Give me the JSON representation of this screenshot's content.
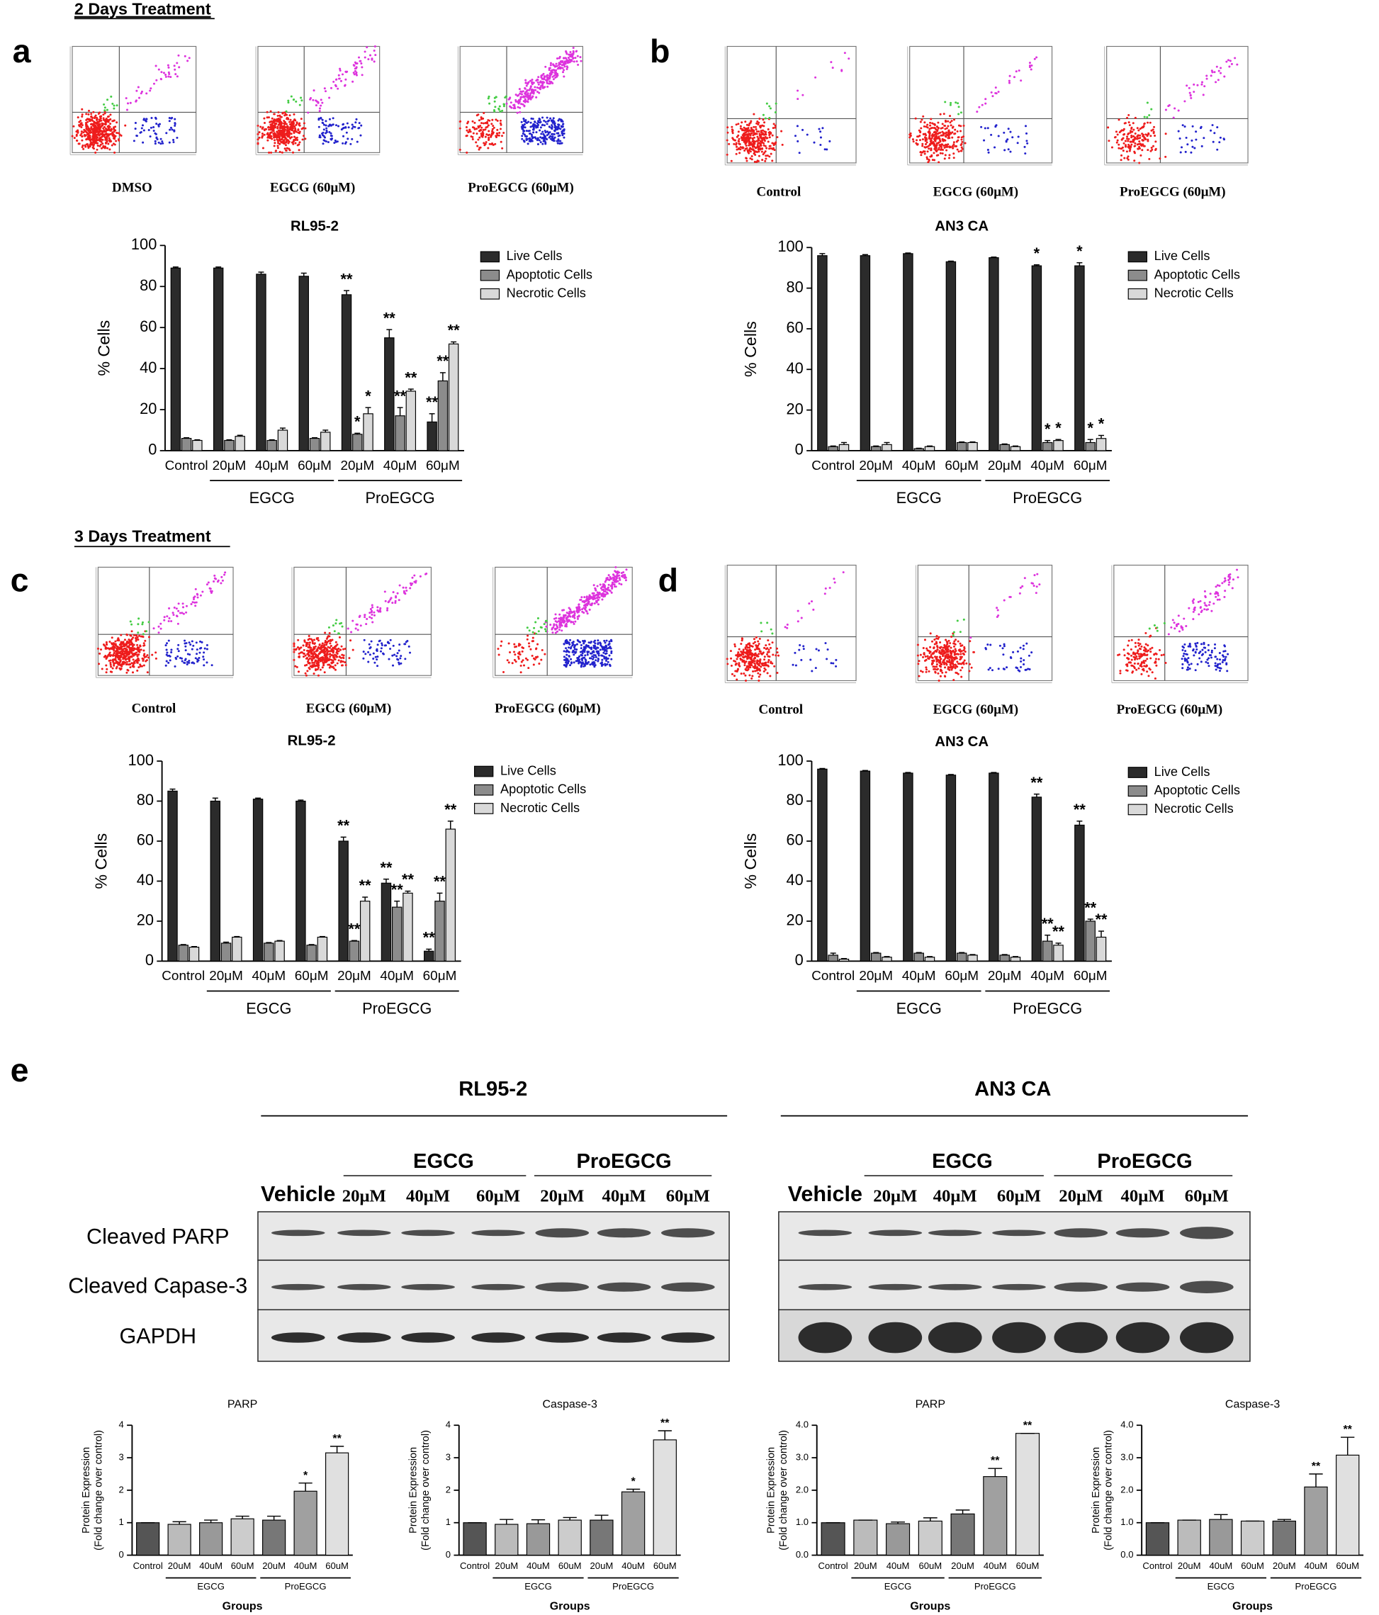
{
  "labels": {
    "day2": "2 Days Treatment",
    "day3": "3 Days Treatment",
    "panels": [
      "a",
      "b",
      "c",
      "d",
      "e"
    ]
  },
  "flow": [
    {
      "captions": [
        "DMSO",
        "EGCG (60μM)",
        "ProEGCG (60μM)"
      ]
    },
    {
      "captions": [
        "Control",
        "EGCG (60μM)",
        "ProEGCG (60μM)"
      ]
    },
    {
      "captions": [
        "Control",
        "EGCG (60μM)",
        "ProEGCG (60μM)"
      ]
    },
    {
      "captions": [
        "Control",
        "EGCG (60μM)",
        "ProEGCG (60μM)"
      ]
    }
  ],
  "blots": [
    {
      "title": "RL95-2",
      "groups": [
        "EGCG",
        "ProEGCG"
      ],
      "lanes": [
        "Vehicle",
        "20μM",
        "40μM",
        "60μM",
        "20μM",
        "40μM",
        "60μM"
      ],
      "rows": [
        "Cleaved PARP",
        "Cleaved Capase-3",
        "GAPDH"
      ]
    },
    {
      "title": "AN3 CA",
      "groups": [
        "EGCG",
        "ProEGCG"
      ],
      "lanes": [
        "Vehicle",
        "20μM",
        "40μM",
        "60μM",
        "20μM",
        "40μM",
        "60μM"
      ]
    }
  ],
  "chart_data": [
    {
      "type": "bar",
      "title": "RL95-2",
      "ylabel": "% Cells",
      "ylim": [
        0,
        100
      ],
      "yticks": [
        0,
        20,
        40,
        60,
        80,
        100
      ],
      "legend": "right",
      "categories": [
        "Control",
        "20μM",
        "40μM",
        "60μM",
        "20μM",
        "40μM",
        "60μM"
      ],
      "groups": [
        "EGCG",
        "ProEGCG"
      ],
      "series": [
        {
          "name": "Live Cells",
          "color": "#2b2b2b",
          "values": [
            89,
            89,
            86,
            85,
            76,
            55,
            14
          ],
          "errors": [
            0.5,
            0.5,
            1,
            1.5,
            2,
            4,
            4
          ],
          "significance": [
            null,
            null,
            null,
            null,
            "**",
            "**",
            "**"
          ]
        },
        {
          "name": "Apoptotic Cells",
          "color": "#8c8c8c",
          "values": [
            6,
            5,
            5,
            6,
            8,
            17,
            34
          ],
          "errors": [
            0.3,
            0.3,
            0.3,
            0.3,
            0.5,
            4,
            4
          ],
          "significance": [
            null,
            null,
            null,
            null,
            "*",
            "**",
            "**"
          ]
        },
        {
          "name": "Necrotic Cells",
          "color": "#d9d9d9",
          "values": [
            5,
            7,
            10,
            9,
            18,
            29,
            52
          ],
          "errors": [
            0.3,
            0.5,
            1,
            1,
            3,
            1,
            1
          ],
          "significance": [
            null,
            null,
            null,
            null,
            "*",
            "**",
            "**"
          ]
        }
      ]
    },
    {
      "type": "bar",
      "title": "AN3 CA",
      "ylabel": "% Cells",
      "ylim": [
        0,
        100
      ],
      "yticks": [
        0,
        20,
        40,
        60,
        80,
        100
      ],
      "legend": "right",
      "categories": [
        "Control",
        "20μM",
        "40μM",
        "60μM",
        "20μM",
        "40μM",
        "60μM"
      ],
      "groups": [
        "EGCG",
        "ProEGCG"
      ],
      "series": [
        {
          "name": "Live Cells",
          "color": "#2b2b2b",
          "values": [
            96,
            96,
            97,
            93,
            95,
            91,
            91
          ],
          "errors": [
            1,
            0.5,
            0.3,
            0.3,
            0.3,
            0.5,
            1.5
          ],
          "significance": [
            null,
            null,
            null,
            null,
            null,
            "*",
            "*"
          ]
        },
        {
          "name": "Apoptotic Cells",
          "color": "#8c8c8c",
          "values": [
            2,
            2,
            1,
            4,
            3,
            4,
            4
          ],
          "errors": [
            0.3,
            0.3,
            0.2,
            0.3,
            0.3,
            1,
            1.5
          ],
          "significance": [
            null,
            null,
            null,
            null,
            null,
            "*",
            "*"
          ]
        },
        {
          "name": "Necrotic Cells",
          "color": "#d9d9d9",
          "values": [
            3,
            3,
            2,
            4,
            2,
            5,
            6
          ],
          "errors": [
            1,
            1,
            0.3,
            0.3,
            0.3,
            0.5,
            1.5
          ],
          "significance": [
            null,
            null,
            null,
            null,
            null,
            "*",
            "*"
          ]
        }
      ]
    },
    {
      "type": "bar",
      "title": "RL95-2",
      "ylabel": "% Cells",
      "ylim": [
        0,
        100
      ],
      "yticks": [
        0,
        20,
        40,
        60,
        80,
        100
      ],
      "legend": "right",
      "categories": [
        "Control",
        "20μM",
        "40μM",
        "60μM",
        "20μM",
        "40μM",
        "60μM"
      ],
      "groups": [
        "EGCG",
        "ProEGCG"
      ],
      "series": [
        {
          "name": "Live Cells",
          "color": "#2b2b2b",
          "values": [
            85,
            80,
            81,
            80,
            60,
            39,
            5
          ],
          "errors": [
            1,
            1.5,
            0.5,
            0.5,
            2,
            2,
            1
          ],
          "significance": [
            null,
            null,
            null,
            null,
            "**",
            "**",
            "**"
          ]
        },
        {
          "name": "Apoptotic Cells",
          "color": "#8c8c8c",
          "values": [
            8,
            9,
            9,
            8,
            10,
            27,
            30
          ],
          "errors": [
            0.3,
            0.5,
            0.3,
            0.3,
            0.3,
            3,
            4
          ],
          "significance": [
            null,
            null,
            null,
            null,
            "**",
            "**",
            "**"
          ]
        },
        {
          "name": "Necrotic Cells",
          "color": "#d9d9d9",
          "values": [
            7,
            12,
            10,
            12,
            30,
            34,
            66
          ],
          "errors": [
            0.3,
            0.3,
            0.3,
            0.3,
            2,
            1,
            4
          ],
          "significance": [
            null,
            null,
            null,
            null,
            "**",
            "**",
            "**"
          ]
        }
      ]
    },
    {
      "type": "bar",
      "title": "AN3 CA",
      "ylabel": "% Cells",
      "ylim": [
        0,
        100
      ],
      "yticks": [
        0,
        20,
        40,
        60,
        80,
        100
      ],
      "legend": "right",
      "categories": [
        "Control",
        "20μM",
        "40μM",
        "60μM",
        "20μM",
        "40μM",
        "60μM"
      ],
      "groups": [
        "EGCG",
        "ProEGCG"
      ],
      "series": [
        {
          "name": "Live Cells",
          "color": "#2b2b2b",
          "values": [
            96,
            95,
            94,
            93,
            94,
            82,
            68
          ],
          "errors": [
            0.3,
            0.3,
            0.3,
            0.3,
            0.3,
            1.5,
            2
          ],
          "significance": [
            null,
            null,
            null,
            null,
            null,
            "**",
            "**"
          ]
        },
        {
          "name": "Apoptotic Cells",
          "color": "#8c8c8c",
          "values": [
            3,
            4,
            4,
            4,
            3,
            10,
            20
          ],
          "errors": [
            1,
            0.3,
            0.3,
            0.3,
            0.3,
            3,
            1
          ],
          "significance": [
            null,
            null,
            null,
            null,
            null,
            "**",
            "**"
          ]
        },
        {
          "name": "Necrotic Cells",
          "color": "#d9d9d9",
          "values": [
            1,
            2,
            2,
            3,
            2,
            8,
            12
          ],
          "errors": [
            0.3,
            0.3,
            0.3,
            0.3,
            0.3,
            1,
            3
          ],
          "significance": [
            null,
            null,
            null,
            null,
            null,
            "**",
            "**"
          ]
        }
      ]
    },
    {
      "type": "bar",
      "title": "PARP",
      "ylabel": [
        "Protein Expression",
        "(Fold change over control)"
      ],
      "xlabel": "Groups",
      "ylim": [
        0,
        4
      ],
      "yticks": [
        0,
        1,
        2,
        3,
        4
      ],
      "categories": [
        "Control",
        "20uM",
        "40uM",
        "60uM",
        "20uM",
        "40uM",
        "60uM"
      ],
      "groups": [
        "EGCG",
        "ProEGCG"
      ],
      "values": [
        1,
        0.95,
        1,
        1.12,
        1.08,
        1.97,
        3.15
      ],
      "errors": [
        0,
        0.08,
        0.08,
        0.08,
        0.12,
        0.25,
        0.2
      ],
      "significance": [
        null,
        null,
        null,
        null,
        null,
        "*",
        "**"
      ],
      "colors": [
        "#555555",
        "#bbbbbb",
        "#999999",
        "#cccccc",
        "#777777",
        "#a0a0a0",
        "#e0e0e0"
      ]
    },
    {
      "type": "bar",
      "title": "Caspase-3",
      "ylabel": [
        "Protein Expression",
        "(Fold change over control)"
      ],
      "xlabel": "Groups",
      "ylim": [
        0,
        4
      ],
      "yticks": [
        0,
        1,
        2,
        3,
        4
      ],
      "categories": [
        "Control",
        "20uM",
        "40uM",
        "60uM",
        "20uM",
        "40uM",
        "60uM"
      ],
      "groups": [
        "EGCG",
        "ProEGCG"
      ],
      "values": [
        1,
        0.95,
        0.97,
        1.08,
        1.08,
        1.95,
        3.55
      ],
      "errors": [
        0,
        0.15,
        0.12,
        0.08,
        0.15,
        0.08,
        0.28
      ],
      "significance": [
        null,
        null,
        null,
        null,
        null,
        "*",
        "**"
      ],
      "colors": [
        "#555555",
        "#bbbbbb",
        "#999999",
        "#cccccc",
        "#777777",
        "#a0a0a0",
        "#e0e0e0"
      ]
    },
    {
      "type": "bar",
      "title": "PARP",
      "ylabel": [
        "Protein Expression",
        "(Fold change over control)"
      ],
      "xlabel": "Groups",
      "ylim": [
        0,
        4
      ],
      "yticks": [
        {
          "value": 0,
          "label": "0.0"
        },
        {
          "value": 1,
          "label": "1.0"
        },
        {
          "value": 2,
          "label": "2.0"
        },
        {
          "value": 3,
          "label": "3.0"
        },
        {
          "value": 4,
          "label": "4.0"
        }
      ],
      "categories": [
        "Control",
        "20uM",
        "40uM",
        "60uM",
        "20uM",
        "40uM",
        "60uM"
      ],
      "groups": [
        "EGCG",
        "ProEGCG"
      ],
      "values": [
        1,
        1.08,
        0.97,
        1.05,
        1.27,
        2.42,
        3.75
      ],
      "errors": [
        0,
        0,
        0.05,
        0.1,
        0.12,
        0.25,
        0
      ],
      "significance": [
        null,
        null,
        null,
        null,
        null,
        "**",
        "**"
      ],
      "colors": [
        "#555555",
        "#bbbbbb",
        "#999999",
        "#cccccc",
        "#777777",
        "#a0a0a0",
        "#e0e0e0"
      ]
    },
    {
      "type": "bar",
      "title": "Caspase-3",
      "ylabel": [
        "Protein Expression",
        "(Fold change over control)"
      ],
      "xlabel": "Groups",
      "ylim": [
        0,
        4
      ],
      "yticks": [
        {
          "value": 0,
          "label": "0.0"
        },
        {
          "value": 1,
          "label": "1.0"
        },
        {
          "value": 2,
          "label": "2.0"
        },
        {
          "value": 3,
          "label": "3.0"
        },
        {
          "value": 4,
          "label": "4.0"
        }
      ],
      "categories": [
        "Control",
        "20uM",
        "40uM",
        "60uM",
        "20uM",
        "40uM",
        "60uM"
      ],
      "groups": [
        "EGCG",
        "ProEGCG"
      ],
      "values": [
        1,
        1.08,
        1.1,
        1.05,
        1.05,
        2.1,
        3.08
      ],
      "errors": [
        0,
        0,
        0.15,
        0,
        0.05,
        0.4,
        0.55
      ],
      "significance": [
        null,
        null,
        null,
        null,
        null,
        "**",
        "**"
      ],
      "colors": [
        "#555555",
        "#bbbbbb",
        "#999999",
        "#cccccc",
        "#777777",
        "#a0a0a0",
        "#e0e0e0"
      ]
    }
  ]
}
